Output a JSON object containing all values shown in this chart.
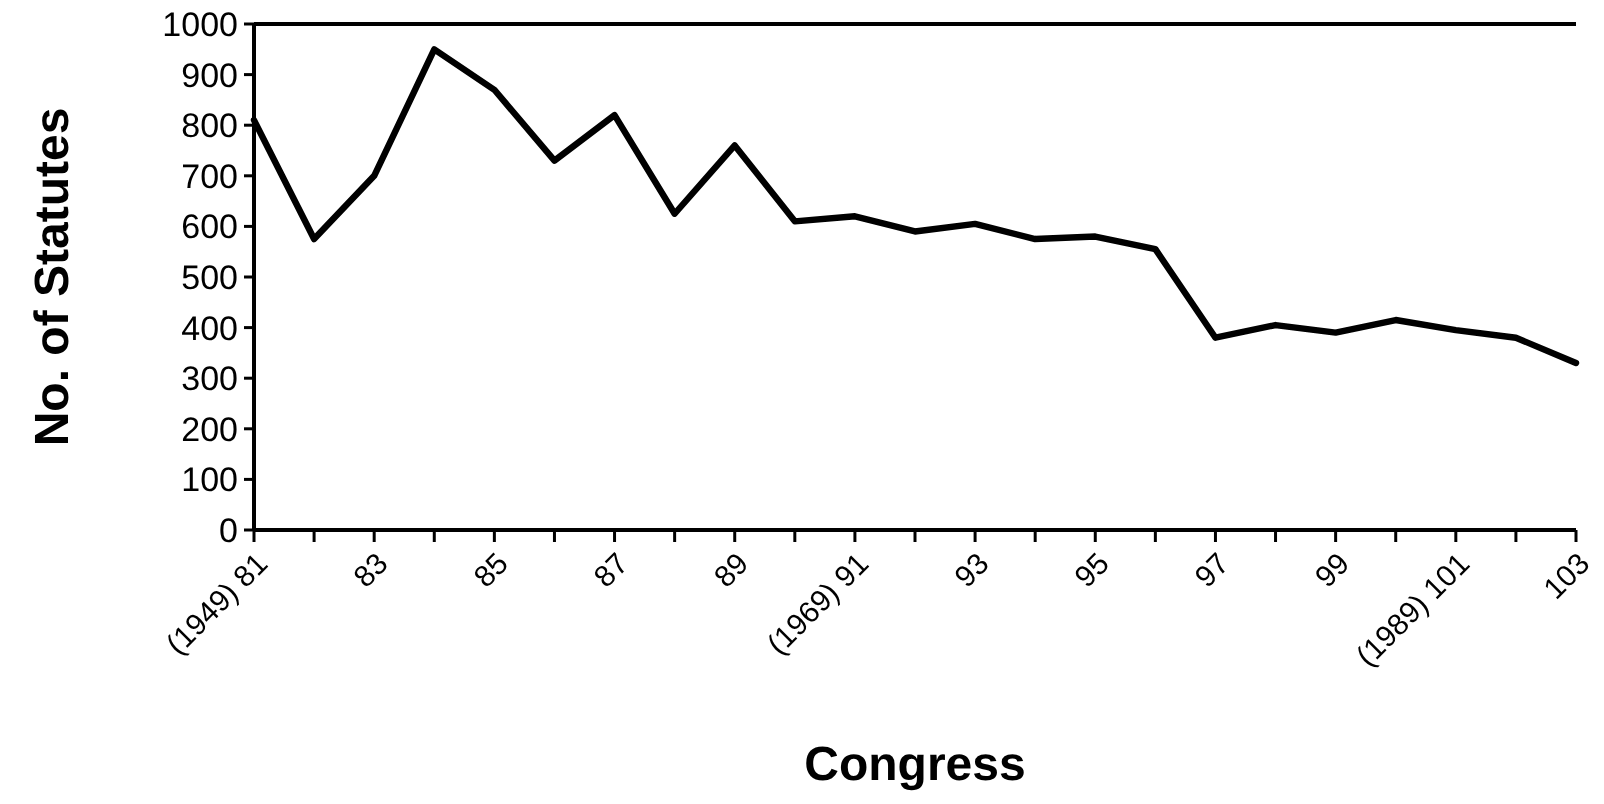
{
  "chart_data": {
    "type": "line",
    "xlabel": "Congress",
    "ylabel": "No. of Statutes",
    "categories": [
      "(1949) 81",
      null,
      "83",
      null,
      "85",
      null,
      "87",
      null,
      "89",
      null,
      "(1969) 91",
      null,
      "93",
      null,
      "95",
      null,
      "97",
      null,
      "99",
      null,
      "(1989) 101",
      null,
      "103"
    ],
    "series": [
      {
        "color": "#000000",
        "values": [
          810,
          575,
          700,
          950,
          870,
          730,
          820,
          625,
          760,
          610,
          620,
          590,
          605,
          575,
          580,
          555,
          380,
          405,
          390,
          415,
          395,
          380,
          330
        ]
      }
    ],
    "ylim": [
      0,
      1000
    ],
    "yticks": [
      0,
      100,
      200,
      300,
      400,
      500,
      600,
      700,
      800,
      900,
      1000
    ],
    "grid": false,
    "marker": "none",
    "line_style": "solid"
  }
}
